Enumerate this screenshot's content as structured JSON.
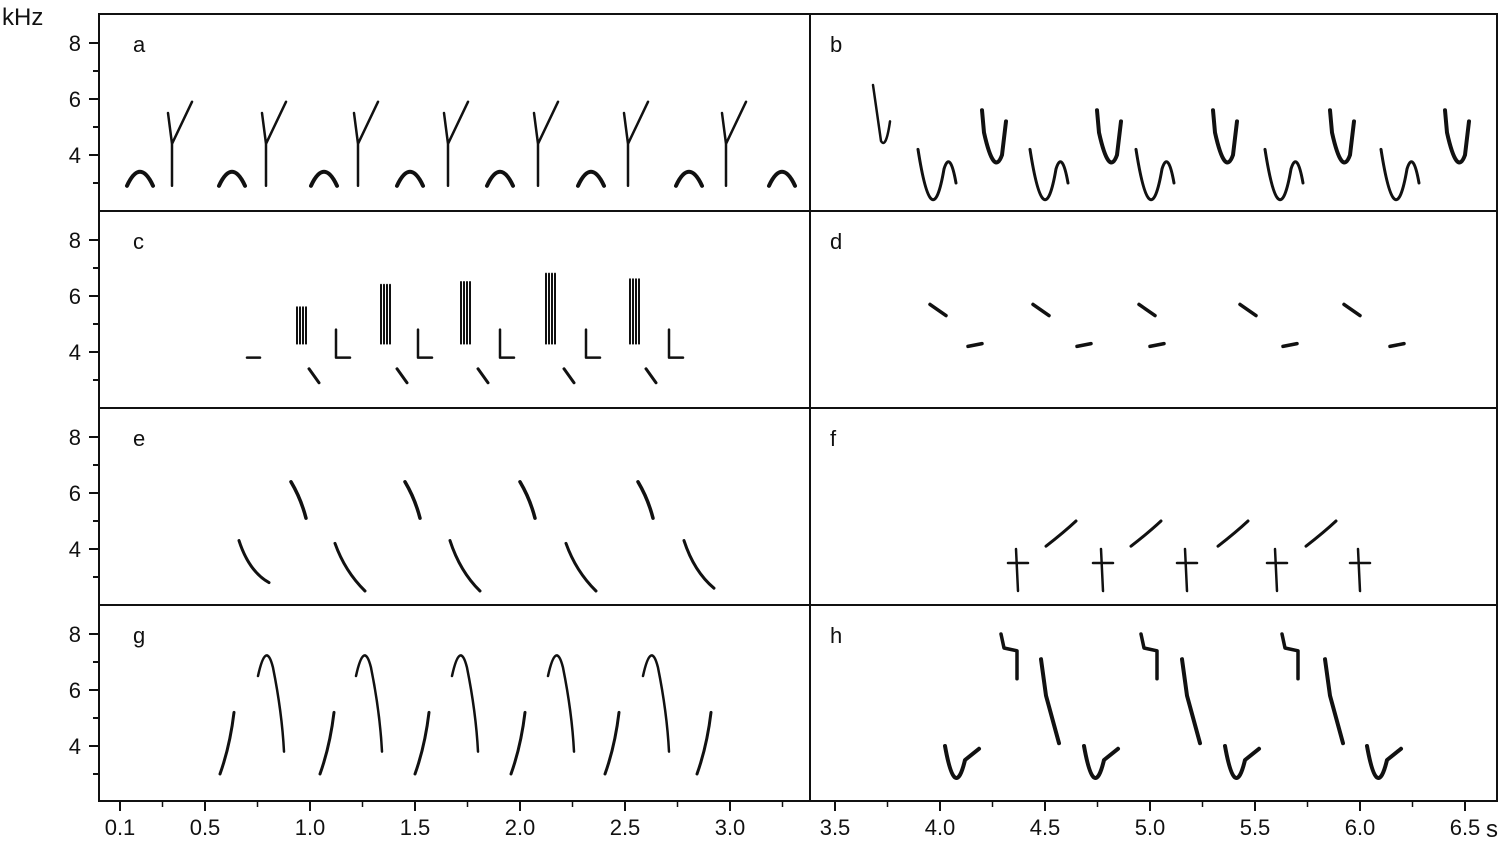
{
  "figure": {
    "y_unit": "kHz",
    "x_unit": "s",
    "y_ticks": [
      "8",
      "6",
      "4"
    ],
    "x_ticks": [
      "0.1",
      "0.5",
      "1.0",
      "1.5",
      "2.0",
      "2.5",
      "3.0",
      "3.5",
      "4.0",
      "4.5",
      "5.0",
      "5.5",
      "6.0",
      "6.5"
    ]
  },
  "panels": [
    {
      "label": "a",
      "col": 0,
      "row": 0
    },
    {
      "label": "b",
      "col": 1,
      "row": 0
    },
    {
      "label": "c",
      "col": 0,
      "row": 1
    },
    {
      "label": "d",
      "col": 1,
      "row": 1
    },
    {
      "label": "e",
      "col": 0,
      "row": 2
    },
    {
      "label": "f",
      "col": 1,
      "row": 2
    },
    {
      "label": "g",
      "col": 0,
      "row": 3
    },
    {
      "label": "h",
      "col": 1,
      "row": 3
    }
  ]
}
